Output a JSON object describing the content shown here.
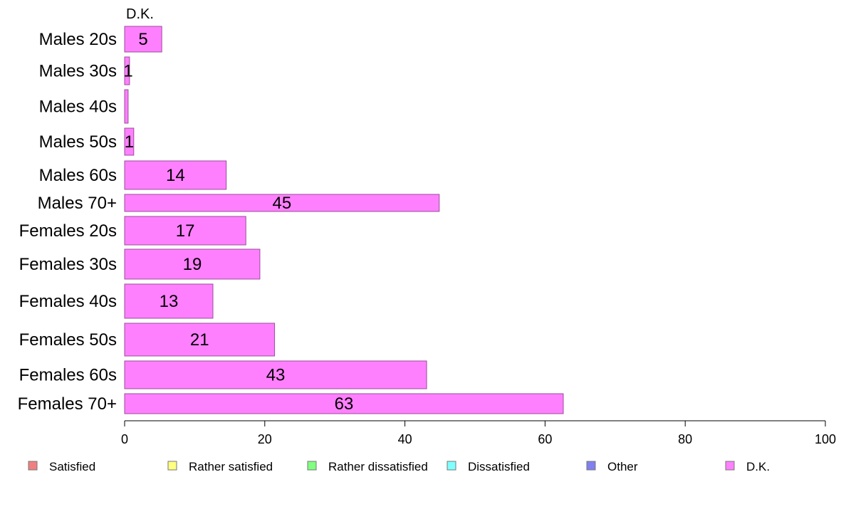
{
  "chart_data": {
    "type": "bar",
    "orientation": "horizontal",
    "stacked": true,
    "series_title": "D.K.",
    "categories": [
      "Males 20s",
      "Males 30s",
      "Males 40s",
      "Males 50s",
      "Males 60s",
      "Males 70+",
      "Females 20s",
      "Females 30s",
      "Females 40s",
      "Females 50s",
      "Females 60s",
      "Females 70+"
    ],
    "series": [
      {
        "name": "Satisfied",
        "color": "#f08080",
        "values": [
          0,
          0,
          0,
          0,
          0,
          0,
          0,
          0,
          0,
          0,
          0,
          0
        ]
      },
      {
        "name": "Rather satisfied",
        "color": "#ffff80",
        "values": [
          0,
          0,
          0,
          0,
          0,
          0,
          0,
          0,
          0,
          0,
          0,
          0
        ]
      },
      {
        "name": "Rather dissatisfied",
        "color": "#80ff80",
        "values": [
          0,
          0,
          0,
          0,
          0,
          0,
          0,
          0,
          0,
          0,
          0,
          0
        ]
      },
      {
        "name": "Dissatisfied",
        "color": "#80ffff",
        "values": [
          0,
          0,
          0,
          0,
          0,
          0,
          0,
          0,
          0,
          0,
          0,
          0
        ]
      },
      {
        "name": "Other",
        "color": "#8080f0",
        "values": [
          0,
          0,
          0,
          0,
          0,
          0,
          0,
          0,
          0,
          0,
          0,
          0
        ]
      },
      {
        "name": "D.K.",
        "color": "#ff80ff",
        "values": [
          5.3,
          0.7,
          0.5,
          1.3,
          14.5,
          44.9,
          17.3,
          19.3,
          12.6,
          21.4,
          43.1,
          62.6
        ]
      }
    ],
    "data_labels": [
      "5",
      "1",
      "",
      "1",
      "14",
      "45",
      "17",
      "19",
      "13",
      "21",
      "43",
      "63"
    ],
    "xlim": [
      0,
      100
    ],
    "xticks": [
      "0",
      "20",
      "40",
      "60",
      "80",
      "100"
    ],
    "grid": false,
    "legend_position": "bottom"
  }
}
